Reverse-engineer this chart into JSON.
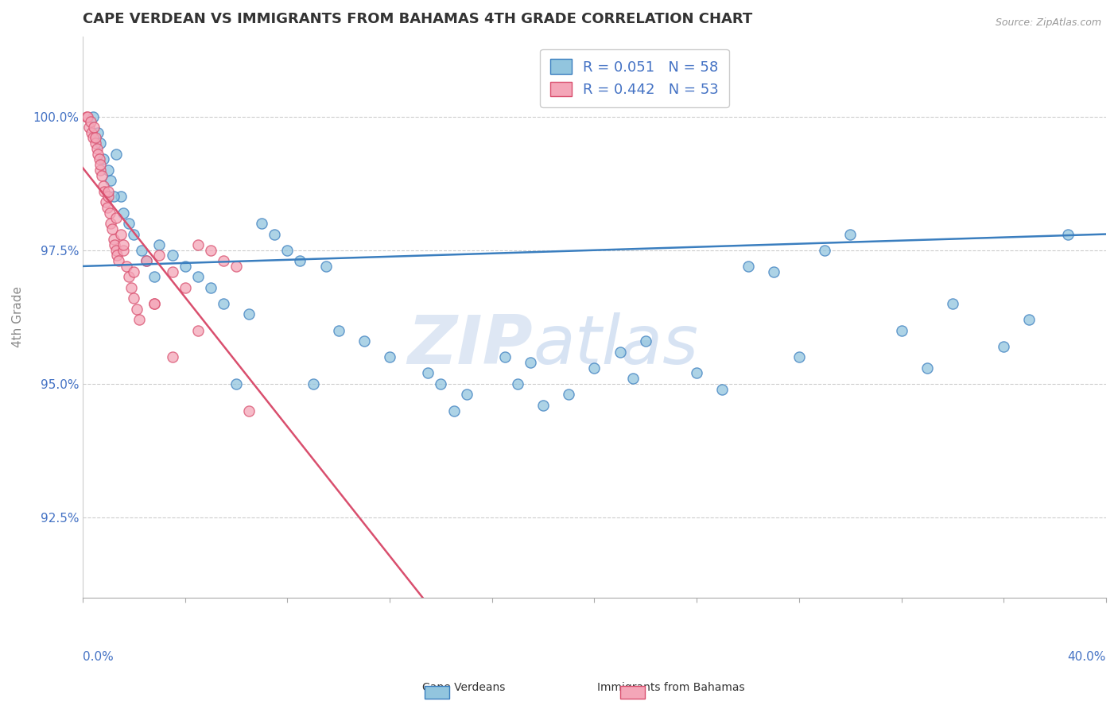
{
  "title": "CAPE VERDEAN VS IMMIGRANTS FROM BAHAMAS 4TH GRADE CORRELATION CHART",
  "source": "Source: ZipAtlas.com",
  "ylabel": "4th Grade",
  "yticks": [
    92.5,
    95.0,
    97.5,
    100.0
  ],
  "ytick_labels": [
    "92.5%",
    "95.0%",
    "97.5%",
    "100.0%"
  ],
  "xmin": 0.0,
  "xmax": 40.0,
  "ymin": 91.0,
  "ymax": 101.5,
  "legend1_label": "R = 0.051   N = 58",
  "legend2_label": "R = 0.442   N = 53",
  "legend1_color": "#92c5de",
  "legend2_color": "#f4a6b8",
  "trendline1_color": "#3a7ebf",
  "trendline2_color": "#d94f6e",
  "blue_scatter_x": [
    0.4,
    0.6,
    0.7,
    0.8,
    1.0,
    1.1,
    1.3,
    1.5,
    1.6,
    1.8,
    2.0,
    2.3,
    2.5,
    3.0,
    3.5,
    4.0,
    4.5,
    5.0,
    5.5,
    6.5,
    7.0,
    7.5,
    8.0,
    8.5,
    9.5,
    10.0,
    11.0,
    12.0,
    13.5,
    14.0,
    15.0,
    16.5,
    17.0,
    18.0,
    19.0,
    20.0,
    21.0,
    22.0,
    24.0,
    25.0,
    26.0,
    28.0,
    29.0,
    30.0,
    32.0,
    33.0,
    34.0,
    36.0,
    37.0,
    38.5,
    1.2,
    2.8,
    6.0,
    9.0,
    14.5,
    17.5,
    21.5,
    27.0
  ],
  "blue_scatter_y": [
    100.0,
    99.7,
    99.5,
    99.2,
    99.0,
    98.8,
    99.3,
    98.5,
    98.2,
    98.0,
    97.8,
    97.5,
    97.3,
    97.6,
    97.4,
    97.2,
    97.0,
    96.8,
    96.5,
    96.3,
    98.0,
    97.8,
    97.5,
    97.3,
    97.2,
    96.0,
    95.8,
    95.5,
    95.2,
    95.0,
    94.8,
    95.5,
    95.0,
    94.6,
    94.8,
    95.3,
    95.6,
    95.8,
    95.2,
    94.9,
    97.2,
    95.5,
    97.5,
    97.8,
    96.0,
    95.3,
    96.5,
    95.7,
    96.2,
    97.8,
    98.5,
    97.0,
    95.0,
    95.0,
    94.5,
    95.4,
    95.1,
    97.1
  ],
  "pink_scatter_x": [
    0.15,
    0.2,
    0.25,
    0.3,
    0.35,
    0.4,
    0.45,
    0.5,
    0.55,
    0.6,
    0.65,
    0.7,
    0.75,
    0.8,
    0.85,
    0.9,
    0.95,
    1.0,
    1.05,
    1.1,
    1.15,
    1.2,
    1.25,
    1.3,
    1.35,
    1.4,
    1.5,
    1.6,
    1.7,
    1.8,
    1.9,
    2.0,
    2.1,
    2.2,
    2.5,
    2.8,
    3.0,
    3.5,
    4.0,
    4.5,
    5.0,
    5.5,
    6.0,
    0.5,
    0.7,
    1.0,
    1.3,
    1.6,
    2.0,
    2.8,
    3.5,
    4.5,
    6.5
  ],
  "pink_scatter_y": [
    100.0,
    100.0,
    99.8,
    99.9,
    99.7,
    99.6,
    99.8,
    99.5,
    99.4,
    99.3,
    99.2,
    99.0,
    98.9,
    98.7,
    98.6,
    98.4,
    98.3,
    98.5,
    98.2,
    98.0,
    97.9,
    97.7,
    97.6,
    97.5,
    97.4,
    97.3,
    97.8,
    97.5,
    97.2,
    97.0,
    96.8,
    96.6,
    96.4,
    96.2,
    97.3,
    96.5,
    97.4,
    97.1,
    96.8,
    97.6,
    97.5,
    97.3,
    97.2,
    99.6,
    99.1,
    98.6,
    98.1,
    97.6,
    97.1,
    96.5,
    95.5,
    96.0,
    94.5
  ],
  "watermark_text": "ZIP",
  "watermark_text2": "atlas",
  "background_color": "#ffffff",
  "grid_color": "#cccccc",
  "title_color": "#333333",
  "tick_label_color": "#4472c4"
}
